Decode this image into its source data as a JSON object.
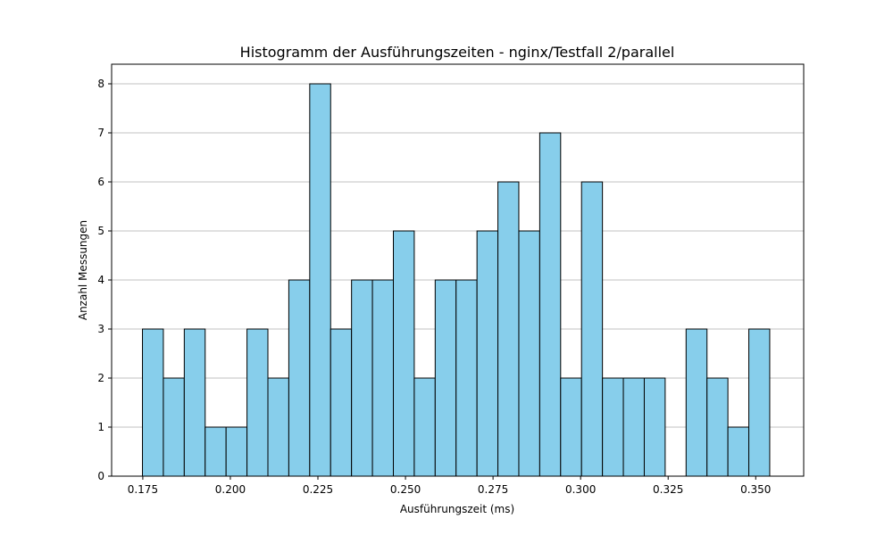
{
  "chart_data": {
    "type": "bar",
    "title": "Histogramm der Ausführungszeiten - nginx/Testfall 2/parallel",
    "xlabel": "Ausführungszeit (ms)",
    "ylabel": "Anzahl Messungen",
    "bin_start": 0.1749,
    "bin_width": 0.00597,
    "values": [
      3,
      2,
      3,
      1,
      1,
      3,
      2,
      4,
      8,
      3,
      4,
      4,
      5,
      2,
      4,
      4,
      5,
      6,
      5,
      7,
      2,
      6,
      2,
      2,
      2,
      0,
      3,
      2,
      1,
      3
    ],
    "xlim": [
      0.1661,
      0.3637
    ],
    "ylim": [
      0,
      8.4
    ],
    "x_ticks": [
      "0.175",
      "0.200",
      "0.225",
      "0.250",
      "0.275",
      "0.300",
      "0.325",
      "0.350"
    ],
    "y_ticks": [
      "0",
      "1",
      "2",
      "3",
      "4",
      "5",
      "6",
      "7",
      "8"
    ],
    "grid": "y",
    "bar_color": "#87ceeb",
    "edge_color": "#000000"
  }
}
